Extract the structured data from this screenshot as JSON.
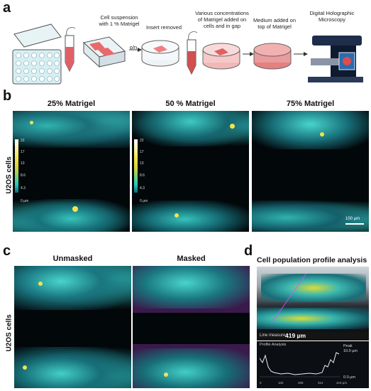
{
  "panels": {
    "a": "a",
    "b": "b",
    "c": "c",
    "d": "d"
  },
  "a": {
    "steps": {
      "cell_suspension": "Cell suspension\nwith 1 % Matrigel",
      "overnight": "o/n",
      "insert_removed": "Insert removed",
      "matrigel_added": "Various concentrations\nof Matrigel added on\ncells and in gap",
      "medium_added": "Medium added on\ntop of Matrigel",
      "dhm": "Digital Holographic\nMicroscopy"
    }
  },
  "b": {
    "columns": [
      "25% Matrigel",
      "50 % Matrigel",
      "75% Matrigel"
    ],
    "row_label": "U2OS cells",
    "colorbar_ticks": [
      "22",
      "17",
      "13",
      "8.6",
      "4.3",
      "0 µm"
    ],
    "scale_bar": "100 µm"
  },
  "c": {
    "columns": [
      "Unmasked",
      "Masked"
    ],
    "row_label": "U2OS cells"
  },
  "d": {
    "title": "Cell population profile analysis",
    "line_measure_label": "Line measure:",
    "line_measure_value": "419 µm",
    "profile_title": "Profile Analysis",
    "peak_label": "Peak",
    "peak_value": "10.0 µm",
    "base_value": "0.0 µm",
    "x_ticks": [
      "0",
      "102",
      "205",
      "314",
      "419 µm"
    ]
  },
  "colors": {
    "cell_cyan": "#23c9c0",
    "cell_yellow": "#f5e34a",
    "background": "#02070a",
    "mask": "#3a1a4a"
  }
}
